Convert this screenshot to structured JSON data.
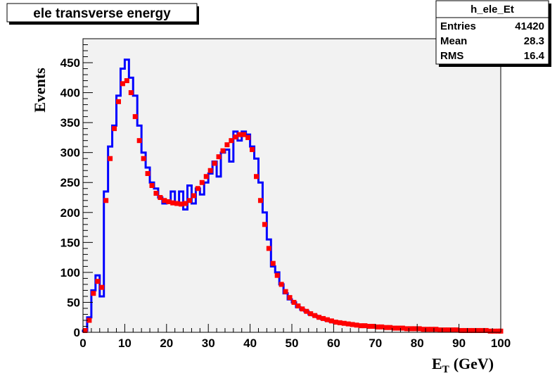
{
  "chart_data": {
    "type": "line",
    "title": "ele transverse energy",
    "xlabel": "E",
    "xlabel_subscript": "T",
    "xlabel_unit": "(GeV)",
    "ylabel": "Events",
    "xlim": [
      0,
      100
    ],
    "ylim": [
      0,
      490
    ],
    "xticks": [
      "0",
      "10",
      "20",
      "30",
      "40",
      "50",
      "60",
      "70",
      "80",
      "90",
      "100"
    ],
    "yticks": [
      "0",
      "50",
      "100",
      "150",
      "200",
      "250",
      "300",
      "350",
      "400",
      "450"
    ],
    "grid": false,
    "stats_box": {
      "name": "h_ele_Et",
      "rows": [
        {
          "label": "Entries",
          "value": "41420"
        },
        {
          "label": "Mean",
          "value": "28.3"
        },
        {
          "label": "RMS",
          "value": "16.4"
        }
      ]
    },
    "colors": {
      "histogram": "#0000ff",
      "reference": "#ff0000",
      "plot_background": "#f2f2f2"
    },
    "series": [
      {
        "kind": "histogram",
        "x": [
          0,
          1,
          2,
          3,
          4,
          5,
          6,
          7,
          8,
          9,
          10,
          11,
          12,
          13,
          14,
          15,
          16,
          17,
          18,
          19,
          20,
          21,
          22,
          23,
          24,
          25,
          26,
          27,
          28,
          29,
          30,
          31,
          32,
          33,
          34,
          35,
          36,
          37,
          38,
          39,
          40,
          41,
          42,
          43,
          44,
          45,
          46,
          47,
          48,
          49,
          50,
          51,
          52,
          53,
          54,
          55,
          56,
          57,
          58,
          59,
          60,
          61,
          62,
          63,
          64,
          65,
          66,
          67,
          68,
          69,
          70,
          71,
          72,
          73,
          74,
          75,
          76,
          77,
          78,
          79,
          80,
          81,
          82,
          83,
          84,
          85,
          86,
          87,
          88,
          89,
          90,
          91,
          92,
          93,
          94,
          95,
          96,
          97,
          98,
          99,
          100
        ],
        "values": [
          3,
          25,
          70,
          95,
          60,
          235,
          310,
          345,
          395,
          440,
          455,
          425,
          395,
          345,
          300,
          275,
          250,
          240,
          225,
          215,
          220,
          235,
          215,
          235,
          205,
          245,
          215,
          240,
          230,
          250,
          265,
          285,
          260,
          300,
          305,
          285,
          335,
          320,
          335,
          330,
          310,
          290,
          250,
          200,
          155,
          110,
          100,
          80,
          65,
          55,
          50,
          42,
          38,
          35,
          30,
          28,
          25,
          22,
          20,
          18,
          16,
          15,
          14,
          13,
          12,
          11,
          10,
          10,
          9,
          9,
          8,
          8,
          7,
          7,
          7,
          6,
          6,
          6,
          5,
          5,
          5,
          5,
          4,
          4,
          4,
          4,
          4,
          3,
          3,
          3,
          3,
          3,
          3,
          2,
          2,
          2,
          2,
          2,
          2,
          2,
          2
        ]
      },
      {
        "kind": "markers",
        "x": [
          0,
          1,
          2,
          3,
          4,
          5,
          6,
          7,
          8,
          9,
          10,
          11,
          12,
          13,
          14,
          15,
          16,
          17,
          18,
          19,
          20,
          21,
          22,
          23,
          24,
          25,
          26,
          27,
          28,
          29,
          30,
          31,
          32,
          33,
          34,
          35,
          36,
          37,
          38,
          39,
          40,
          41,
          42,
          43,
          44,
          45,
          46,
          47,
          48,
          49,
          50,
          51,
          52,
          53,
          54,
          55,
          56,
          57,
          58,
          59,
          60,
          61,
          62,
          63,
          64,
          65,
          66,
          67,
          68,
          69,
          70,
          71,
          72,
          73,
          74,
          75,
          76,
          77,
          78,
          79,
          80,
          81,
          82,
          83,
          84,
          85,
          86,
          87,
          88,
          89,
          90,
          91,
          92,
          93,
          94,
          95,
          96,
          97,
          98,
          99,
          100
        ],
        "values": [
          3,
          20,
          65,
          85,
          75,
          220,
          290,
          340,
          385,
          415,
          420,
          400,
          360,
          320,
          290,
          265,
          245,
          232,
          225,
          220,
          218,
          216,
          215,
          214,
          215,
          220,
          228,
          240,
          250,
          260,
          270,
          282,
          293,
          303,
          313,
          320,
          326,
          330,
          330,
          325,
          305,
          260,
          220,
          180,
          140,
          115,
          95,
          80,
          68,
          58,
          50,
          44,
          39,
          35,
          31,
          28,
          25,
          23,
          21,
          19,
          17,
          16,
          15,
          14,
          13,
          12,
          11,
          11,
          10,
          10,
          9,
          9,
          8,
          8,
          7,
          7,
          7,
          6,
          6,
          6,
          6,
          5,
          5,
          5,
          5,
          4,
          4,
          4,
          4,
          4,
          3,
          3,
          3,
          3,
          3,
          3,
          3,
          2,
          2,
          2,
          2
        ]
      }
    ]
  }
}
